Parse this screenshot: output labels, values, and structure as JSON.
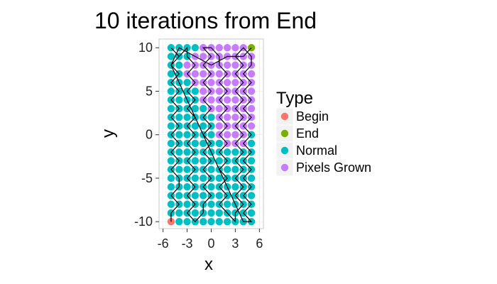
{
  "chart_data": {
    "type": "scatter",
    "title": "10 iterations from End",
    "xlabel": "x",
    "ylabel": "y",
    "xlim": [
      -6.5,
      6.5
    ],
    "ylim": [
      -10.8,
      11
    ],
    "xticks": [
      -6,
      -3,
      0,
      3,
      6
    ],
    "yticks": [
      -10,
      -5,
      0,
      5,
      10
    ],
    "xtick_labels": [
      "-6",
      "-3",
      "0",
      "3",
      "6"
    ],
    "ytick_labels": [
      "-10",
      "-5",
      "0",
      "5",
      "10"
    ],
    "grid": true,
    "legend": {
      "title": "Type",
      "placement": "right",
      "entries": [
        {
          "label": "Begin",
          "color": "#F8766D"
        },
        {
          "label": "End",
          "color": "#7CAE00"
        },
        {
          "label": "Normal",
          "color": "#00BFC4"
        },
        {
          "label": "Pixels Grown",
          "color": "#C77CFF"
        }
      ]
    },
    "grid_points": {
      "x_range": [
        -5,
        5
      ],
      "y_range": [
        -10,
        10
      ],
      "default_type": "Normal"
    },
    "special_points": [
      {
        "type": "Begin",
        "x": -5,
        "y": -10
      },
      {
        "type": "End",
        "x": 5,
        "y": 10
      }
    ],
    "grown_region": [
      {
        "y": 10,
        "x_from": -1,
        "x_to": 4
      },
      {
        "y": 9,
        "x_from": -2,
        "x_to": 5
      },
      {
        "y": 8,
        "x_from": -3,
        "x_to": 5
      },
      {
        "y": 7,
        "x_from": -3,
        "x_to": 5
      },
      {
        "y": 6,
        "x_from": -2,
        "x_to": 5
      },
      {
        "y": 5,
        "x_from": -1,
        "x_to": 5
      },
      {
        "y": 4,
        "x_from": -1,
        "x_to": 5
      },
      {
        "y": 3,
        "x_from": 0,
        "x_to": 5
      },
      {
        "y": 2,
        "x_from": 1,
        "x_to": 5
      },
      {
        "y": 1,
        "x_from": 1,
        "x_to": 5
      },
      {
        "y": 0,
        "x_from": 1,
        "x_to": 4
      },
      {
        "y": -1,
        "x_from": 2,
        "x_to": 4
      }
    ],
    "path": [
      [
        -5,
        -10
      ],
      [
        -5,
        -9
      ],
      [
        -4,
        -8
      ],
      [
        -5,
        -7
      ],
      [
        -4,
        -6
      ],
      [
        -4,
        -5
      ],
      [
        -5,
        -4
      ],
      [
        -4,
        -3
      ],
      [
        -5,
        -2
      ],
      [
        -4,
        -1
      ],
      [
        -5,
        0
      ],
      [
        -4,
        1
      ],
      [
        -5,
        2
      ],
      [
        -4,
        3
      ],
      [
        -5,
        4
      ],
      [
        -4,
        5
      ],
      [
        -5,
        6
      ],
      [
        -4,
        7
      ],
      [
        -5,
        8
      ],
      [
        -4,
        9
      ],
      [
        -5,
        10
      ],
      [
        -4,
        9
      ],
      [
        -3,
        10
      ],
      [
        -3,
        9
      ],
      [
        -2,
        8
      ],
      [
        -3,
        7
      ],
      [
        -2,
        6
      ],
      [
        -3,
        5
      ],
      [
        -2,
        4
      ],
      [
        -3,
        3
      ],
      [
        -2,
        2
      ],
      [
        -3,
        1
      ],
      [
        -2,
        0
      ],
      [
        -3,
        -1
      ],
      [
        -2,
        -2
      ],
      [
        -3,
        -3
      ],
      [
        -2,
        -4
      ],
      [
        -3,
        -5
      ],
      [
        -2,
        -6
      ],
      [
        -3,
        -7
      ],
      [
        -2,
        -8
      ],
      [
        -3,
        -9
      ],
      [
        -2,
        -10
      ],
      [
        -1,
        -9
      ],
      [
        -1,
        -8
      ],
      [
        0,
        -7
      ],
      [
        -1,
        -6
      ],
      [
        0,
        -5
      ],
      [
        -1,
        -4
      ],
      [
        0,
        -3
      ],
      [
        -1,
        -2
      ],
      [
        0,
        -1
      ],
      [
        -1,
        0
      ],
      [
        0,
        1
      ],
      [
        -1,
        2
      ],
      [
        0,
        3
      ],
      [
        -1,
        4
      ],
      [
        0,
        5
      ],
      [
        -1,
        6
      ],
      [
        0,
        7
      ],
      [
        -1,
        8
      ],
      [
        0,
        9
      ],
      [
        -1,
        10
      ],
      [
        0,
        10
      ],
      [
        1,
        9
      ],
      [
        1,
        8
      ],
      [
        2,
        7
      ],
      [
        1,
        6
      ],
      [
        2,
        5
      ],
      [
        1,
        4
      ],
      [
        2,
        3
      ],
      [
        1,
        2
      ],
      [
        2,
        1
      ],
      [
        1,
        0
      ],
      [
        2,
        -1
      ],
      [
        1,
        -2
      ],
      [
        2,
        -3
      ],
      [
        1,
        -4
      ],
      [
        2,
        -5
      ],
      [
        1,
        -6
      ],
      [
        2,
        -7
      ],
      [
        1,
        -8
      ],
      [
        2,
        -9
      ],
      [
        3,
        -10
      ],
      [
        3,
        -9
      ],
      [
        4,
        -8
      ],
      [
        3,
        -7
      ],
      [
        4,
        -6
      ],
      [
        3,
        -5
      ],
      [
        4,
        -4
      ],
      [
        3,
        -3
      ],
      [
        4,
        -2
      ],
      [
        3,
        -1
      ],
      [
        4,
        0
      ],
      [
        3,
        1
      ],
      [
        4,
        2
      ],
      [
        3,
        3
      ],
      [
        4,
        4
      ],
      [
        3,
        5
      ],
      [
        4,
        6
      ],
      [
        3,
        7
      ],
      [
        4,
        8
      ],
      [
        3,
        9
      ],
      [
        4,
        10
      ],
      [
        5,
        9
      ],
      [
        5,
        8
      ],
      [
        4,
        7
      ],
      [
        5,
        6
      ],
      [
        4,
        5
      ],
      [
        5,
        4
      ],
      [
        4,
        3
      ],
      [
        5,
        2
      ],
      [
        4,
        1
      ],
      [
        5,
        0
      ],
      [
        4,
        -1
      ],
      [
        5,
        -2
      ],
      [
        4,
        -3
      ],
      [
        5,
        -4
      ],
      [
        4,
        -5
      ],
      [
        5,
        -6
      ],
      [
        4,
        -7
      ],
      [
        5,
        -8
      ],
      [
        4,
        -9
      ],
      [
        5,
        -10
      ],
      [
        4,
        -10
      ],
      [
        3,
        -8
      ],
      [
        2,
        -6
      ],
      [
        1,
        -4
      ],
      [
        0,
        -2
      ],
      [
        -1,
        0
      ],
      [
        -2,
        2
      ],
      [
        -3,
        4
      ],
      [
        -4,
        6
      ],
      [
        -5,
        8
      ],
      [
        -4,
        10
      ],
      [
        -2,
        9
      ],
      [
        0,
        8
      ],
      [
        2,
        9
      ],
      [
        4,
        9
      ],
      [
        5,
        10
      ]
    ]
  }
}
